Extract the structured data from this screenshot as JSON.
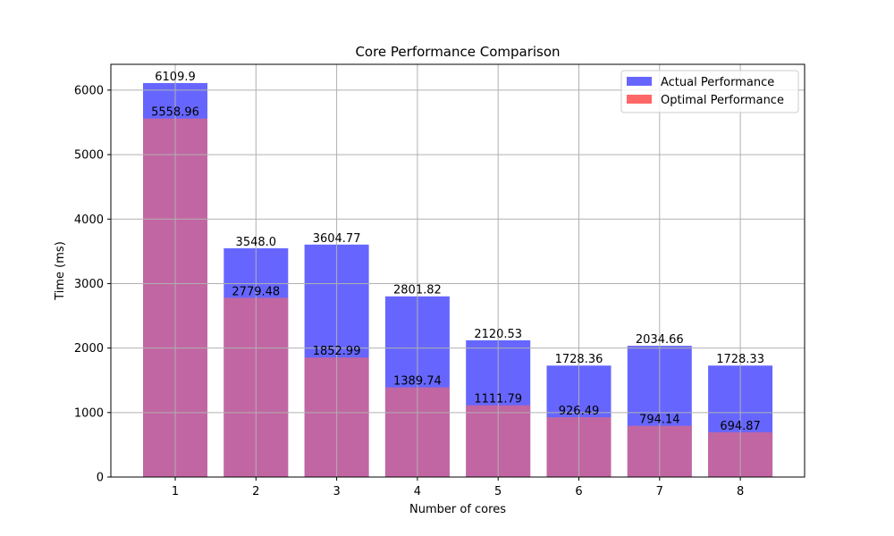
{
  "chart_data": {
    "type": "bar",
    "title": "Core Performance Comparison",
    "xlabel": "Number of cores",
    "ylabel": "Time (ms)",
    "categories": [
      "1",
      "2",
      "3",
      "4",
      "5",
      "6",
      "7",
      "8"
    ],
    "ylim": [
      0,
      6400
    ],
    "yticks": [
      0,
      1000,
      2000,
      3000,
      4000,
      5000,
      6000
    ],
    "grid": true,
    "legend_position": "top-right",
    "series": [
      {
        "name": "Actual Performance",
        "color": "#6666ff",
        "values": [
          6109.9,
          3548.0,
          3604.77,
          2801.82,
          2120.53,
          1728.36,
          2034.66,
          1728.33
        ],
        "labels": [
          "6109.9",
          "3548.0",
          "3604.77",
          "2801.82",
          "2120.53",
          "1728.36",
          "2034.66",
          "1728.33"
        ]
      },
      {
        "name": "Optimal Performance",
        "color": "#ff6666",
        "values": [
          5558.96,
          2779.48,
          1852.99,
          1389.74,
          1111.79,
          926.49,
          794.14,
          694.87
        ],
        "labels": [
          "5558.96",
          "2779.48",
          "1852.99",
          "1389.74",
          "1111.79",
          "926.49",
          "794.14",
          "694.87"
        ]
      }
    ],
    "overlap_color": "#c1285f"
  }
}
